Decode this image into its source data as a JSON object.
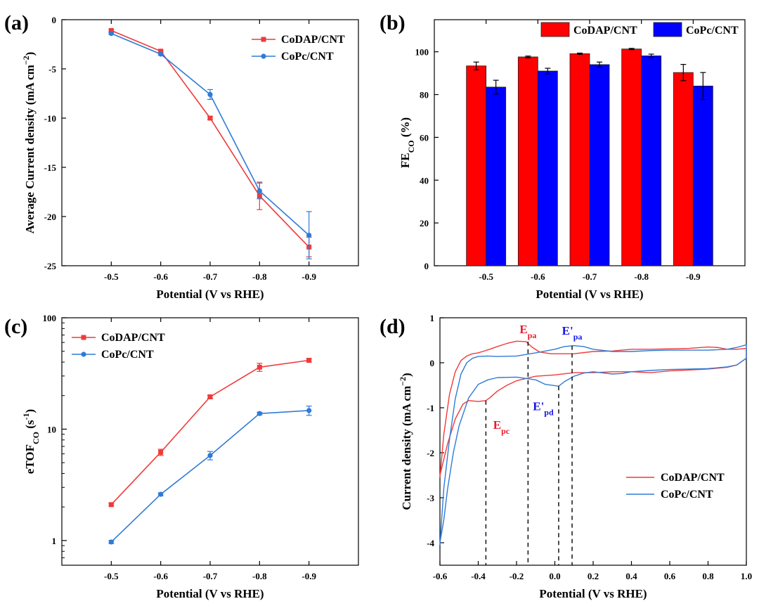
{
  "panels": {
    "a": "(a)",
    "b": "(b)",
    "c": "(c)",
    "d": "(d)"
  },
  "colors": {
    "codap": "#f03a3a",
    "copc": "#2f7bd6",
    "bar_red": "#ff0000",
    "bar_blue": "#0000ff",
    "annot_red": "#e8192c",
    "annot_blue": "#1414e6"
  },
  "chart_data": [
    {
      "id": "a",
      "type": "line",
      "xlabel": "Potential (V vs RHE)",
      "ylabel": "Average Current density (mA cm",
      "ylabel_sup": "−2",
      "ylabel_end": ")",
      "categories": [
        "-0.5",
        "-0.6",
        "-0.7",
        "-0.8",
        "-0.9"
      ],
      "ylim": [
        -25,
        0
      ],
      "yticks": [
        0,
        -5,
        -10,
        -15,
        -20,
        -25
      ],
      "series": [
        {
          "name": "CoDAP/CNT",
          "color": "#f03a3a",
          "marker": "square",
          "values": [
            -1.1,
            -3.2,
            -10.0,
            -17.9,
            -23.1
          ],
          "errors": [
            0.1,
            0.1,
            0.15,
            1.4,
            1.0
          ]
        },
        {
          "name": "CoPc/CNT",
          "color": "#2f7bd6",
          "marker": "circle",
          "values": [
            -1.4,
            -3.5,
            -7.6,
            -17.4,
            -21.9
          ],
          "errors": [
            0.1,
            0.1,
            0.5,
            0.8,
            2.4
          ]
        }
      ],
      "legend_position": "top-right"
    },
    {
      "id": "b",
      "type": "bar",
      "xlabel": "Potential (V vs RHE)",
      "ylabel": "FE",
      "ylabel_sub": "CO",
      "ylabel_end": " (%)",
      "categories": [
        "-0.5",
        "-0.6",
        "-0.7",
        "-0.8",
        "-0.9"
      ],
      "ylim": [
        0,
        115
      ],
      "yticks": [
        0,
        20,
        40,
        60,
        80,
        100
      ],
      "series": [
        {
          "name": "CoDAP/CNT",
          "color": "#ff0000",
          "values": [
            93.4,
            97.6,
            99.1,
            101.3,
            90.3
          ],
          "errors": [
            1.8,
            0.4,
            0.3,
            0.3,
            3.8
          ]
        },
        {
          "name": "CoPc/CNT",
          "color": "#0000ff",
          "values": [
            83.5,
            91.0,
            94.0,
            98.1,
            84.0
          ],
          "errors": [
            3.2,
            1.3,
            1.2,
            0.8,
            6.3
          ]
        }
      ],
      "legend_position": "top"
    },
    {
      "id": "c",
      "type": "line",
      "scale": "log",
      "xlabel": "Potential (V vs RHE)",
      "ylabel": "eTOF",
      "ylabel_sub": "CO",
      "ylabel_end": " (s",
      "ylabel_sup": "-1",
      "ylabel_close": ")",
      "categories": [
        "-0.5",
        "-0.6",
        "-0.7",
        "-0.8",
        "-0.9"
      ],
      "ylim": [
        0.6,
        100
      ],
      "yticks": [
        1,
        10,
        100
      ],
      "series": [
        {
          "name": "CoDAP/CNT",
          "color": "#f03a3a",
          "marker": "square",
          "values": [
            2.1,
            6.2,
            19.5,
            36.0,
            41.5
          ],
          "errors": [
            0.05,
            0.4,
            0.6,
            3.0,
            1.5
          ]
        },
        {
          "name": "CoPc/CNT",
          "color": "#2f7bd6",
          "marker": "circle",
          "values": [
            0.97,
            2.6,
            5.8,
            13.8,
            14.7
          ],
          "errors": [
            0.03,
            0.08,
            0.5,
            0.4,
            1.4
          ]
        }
      ],
      "legend_position": "top-left"
    },
    {
      "id": "d",
      "type": "line",
      "xlabel": "Potential (V vs RHE)",
      "ylabel": "Current density (mA cm",
      "ylabel_sup": "−2",
      "ylabel_end": ")",
      "xlim": [
        -0.6,
        1.0
      ],
      "ylim": [
        -4.5,
        1
      ],
      "xticks": [
        -0.6,
        -0.4,
        -0.2,
        0.0,
        0.2,
        0.4,
        0.6,
        0.8,
        1.0
      ],
      "xtick_labels": [
        "-0.6",
        "-0.4",
        "-0.2",
        "0.0",
        "0.2",
        "0.4",
        "0.6",
        "0.8",
        "1.0"
      ],
      "yticks": [
        1,
        0,
        -1,
        -2,
        -3,
        -4
      ],
      "series": [
        {
          "name": "CoDAP/CNT",
          "color": "#f03a3a",
          "x": [
            -0.6,
            -0.58,
            -0.55,
            -0.52,
            -0.49,
            -0.46,
            -0.43,
            -0.4,
            -0.37,
            -0.34,
            -0.3,
            -0.25,
            -0.2,
            -0.15,
            -0.12,
            -0.08,
            -0.02,
            0.05,
            0.1,
            0.2,
            0.3,
            0.4,
            0.5,
            0.6,
            0.7,
            0.8,
            0.85,
            0.9,
            0.95,
            1.0,
            1.0,
            0.95,
            0.9,
            0.8,
            0.7,
            0.6,
            0.5,
            0.4,
            0.3,
            0.2,
            0.1,
            0.0,
            -0.1,
            -0.2,
            -0.25,
            -0.3,
            -0.34,
            -0.36,
            -0.4,
            -0.45,
            -0.48,
            -0.52,
            -0.56,
            -0.6
          ],
          "y": [
            -2.55,
            -1.6,
            -0.7,
            -0.2,
            0.05,
            0.15,
            0.2,
            0.22,
            0.26,
            0.3,
            0.36,
            0.43,
            0.48,
            0.47,
            0.35,
            0.24,
            0.2,
            0.2,
            0.2,
            0.25,
            0.26,
            0.3,
            0.3,
            0.31,
            0.32,
            0.35,
            0.34,
            0.3,
            0.3,
            0.32,
            0.1,
            -0.05,
            -0.1,
            -0.14,
            -0.16,
            -0.18,
            -0.22,
            -0.2,
            -0.2,
            -0.22,
            -0.22,
            -0.27,
            -0.3,
            -0.4,
            -0.5,
            -0.63,
            -0.78,
            -0.84,
            -0.86,
            -0.84,
            -0.92,
            -1.25,
            -1.8,
            -2.5
          ]
        },
        {
          "name": "CoPc/CNT",
          "color": "#2f7bd6",
          "x": [
            -0.6,
            -0.58,
            -0.55,
            -0.52,
            -0.49,
            -0.46,
            -0.43,
            -0.4,
            -0.35,
            -0.3,
            -0.2,
            -0.1,
            0.0,
            0.05,
            0.1,
            0.15,
            0.2,
            0.3,
            0.4,
            0.5,
            0.6,
            0.7,
            0.8,
            0.9,
            0.95,
            1.0,
            1.0,
            0.95,
            0.9,
            0.8,
            0.7,
            0.6,
            0.5,
            0.4,
            0.35,
            0.3,
            0.2,
            0.15,
            0.1,
            0.05,
            0.02,
            -0.05,
            -0.1,
            -0.2,
            -0.3,
            -0.35,
            -0.4,
            -0.45,
            -0.5,
            -0.53,
            -0.56,
            -0.58,
            -0.6
          ],
          "y": [
            -4.05,
            -2.8,
            -1.7,
            -0.8,
            -0.25,
            0.0,
            0.1,
            0.14,
            0.15,
            0.14,
            0.15,
            0.22,
            0.3,
            0.36,
            0.38,
            0.36,
            0.3,
            0.25,
            0.25,
            0.27,
            0.28,
            0.28,
            0.28,
            0.3,
            0.34,
            0.4,
            0.1,
            -0.05,
            -0.09,
            -0.13,
            -0.14,
            -0.15,
            -0.17,
            -0.2,
            -0.24,
            -0.25,
            -0.2,
            -0.23,
            -0.3,
            -0.42,
            -0.52,
            -0.48,
            -0.38,
            -0.32,
            -0.33,
            -0.38,
            -0.48,
            -0.78,
            -1.4,
            -2.0,
            -2.8,
            -3.5,
            -4.0
          ]
        }
      ],
      "annotations": [
        {
          "label": "E",
          "sub": "pa",
          "prime": false,
          "color": "#e8192c",
          "x": -0.14,
          "line_to": 0.47
        },
        {
          "label": "E",
          "sub": "pc",
          "prime": false,
          "color": "#e8192c",
          "x": -0.36,
          "line_to": -0.84
        },
        {
          "label": "E",
          "sub": "pa",
          "prime": true,
          "color": "#1414e6",
          "x": 0.09,
          "line_to": 0.38
        },
        {
          "label": "E",
          "sub": "pd",
          "prime": true,
          "color": "#1414e6",
          "x": 0.02,
          "line_to": -0.52
        }
      ],
      "legend_position": "bottom-right"
    }
  ]
}
